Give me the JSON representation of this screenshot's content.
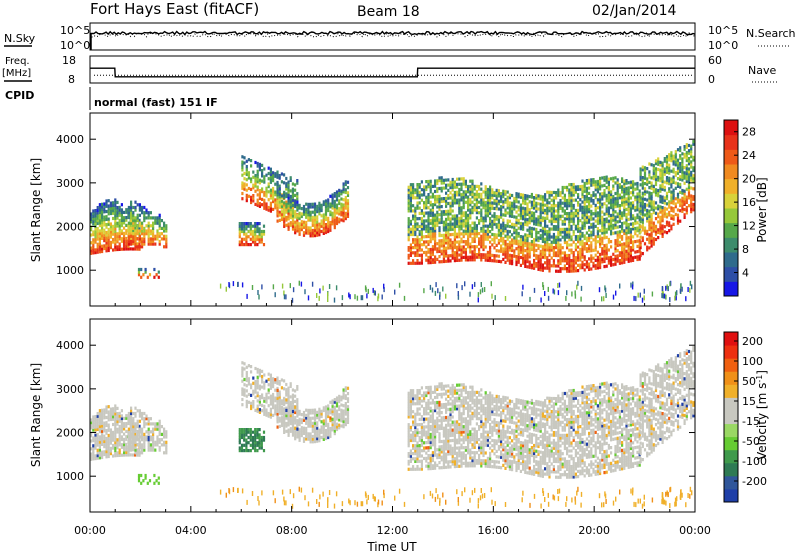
{
  "header": {
    "station": "Fort Hays East (fitACF)",
    "beam": "Beam 18",
    "date": "02/Jan/2014"
  },
  "top_panels": {
    "nsky_label": "N.Sky",
    "nsearch_label": "N.Search",
    "noise_tick_hi": "10^5",
    "noise_tick_lo": "10^0",
    "freq_label": "Freq.",
    "freq_unit": "[MHz]",
    "freq_tick_hi": "18",
    "freq_tick_lo": "8",
    "nave_label": "Nave",
    "nave_tick_hi": "60",
    "nave_tick_lo": "0",
    "cpid_label": "CPID",
    "cpid_text": "normal (fast) 151 IF"
  },
  "colors": {
    "power_scale": [
      "#1717e6",
      "#2e4fa6",
      "#2f6b8c",
      "#3d8c6c",
      "#56a84a",
      "#96c83a",
      "#d8d23a",
      "#f0b02a",
      "#f08a20",
      "#ee5a18",
      "#e8321a",
      "#dd1010"
    ],
    "velocity_scale": [
      "#1f3fa8",
      "#30569a",
      "#2e7a54",
      "#3f9a4c",
      "#66cc33",
      "#9ad864",
      "#c8c8c0",
      "#c8c8c0",
      "#f0b02a",
      "#f09018",
      "#f06010",
      "#ee3010",
      "#e01010"
    ]
  },
  "chart_data": [
    {
      "type": "line",
      "panel": "noise",
      "series": [
        {
          "name": "N.Sky",
          "style": "solid"
        },
        {
          "name": "N.Search",
          "style": "dotted"
        }
      ],
      "yscale": "log",
      "yticks": [
        "10^0",
        "10^5"
      ]
    },
    {
      "type": "line",
      "panel": "frequency",
      "series": [
        {
          "name": "Freq.",
          "style": "solid",
          "x": [
            "00:00",
            "00:59",
            "01:00",
            "12:59",
            "13:00",
            "24:00"
          ],
          "values": [
            13.5,
            13.5,
            10.3,
            10.3,
            13.5,
            13.5
          ]
        },
        {
          "name": "Nave",
          "style": "dotted",
          "values": [
            17,
            17
          ]
        }
      ],
      "ylim": [
        8,
        18
      ],
      "ylim_right": [
        0,
        60
      ]
    },
    {
      "type": "heatmap",
      "panel": "power",
      "ylabel": "Slant Range [km]",
      "ylim": [
        180,
        4600
      ],
      "yticks": [
        1000,
        2000,
        3000,
        4000
      ],
      "xlim_hours": [
        0,
        24
      ],
      "colorbar": {
        "label": "Power [dB]",
        "range": [
          0,
          30
        ],
        "ticks": [
          4,
          8,
          12,
          16,
          20,
          24,
          28
        ]
      }
    },
    {
      "type": "heatmap",
      "panel": "velocity",
      "ylabel": "Slant Range [km]",
      "xlabel": "Time UT",
      "ylim": [
        180,
        4600
      ],
      "yticks": [
        1000,
        2000,
        3000,
        4000
      ],
      "xticks": [
        "00:00",
        "04:00",
        "08:00",
        "12:00",
        "16:00",
        "20:00",
        "00:00"
      ],
      "xlim_hours": [
        0,
        24
      ],
      "colorbar": {
        "label": "Velocity [m s^-1]",
        "ticks": [
          200,
          100,
          50,
          15,
          -15,
          -50,
          -100,
          -200
        ]
      }
    }
  ]
}
